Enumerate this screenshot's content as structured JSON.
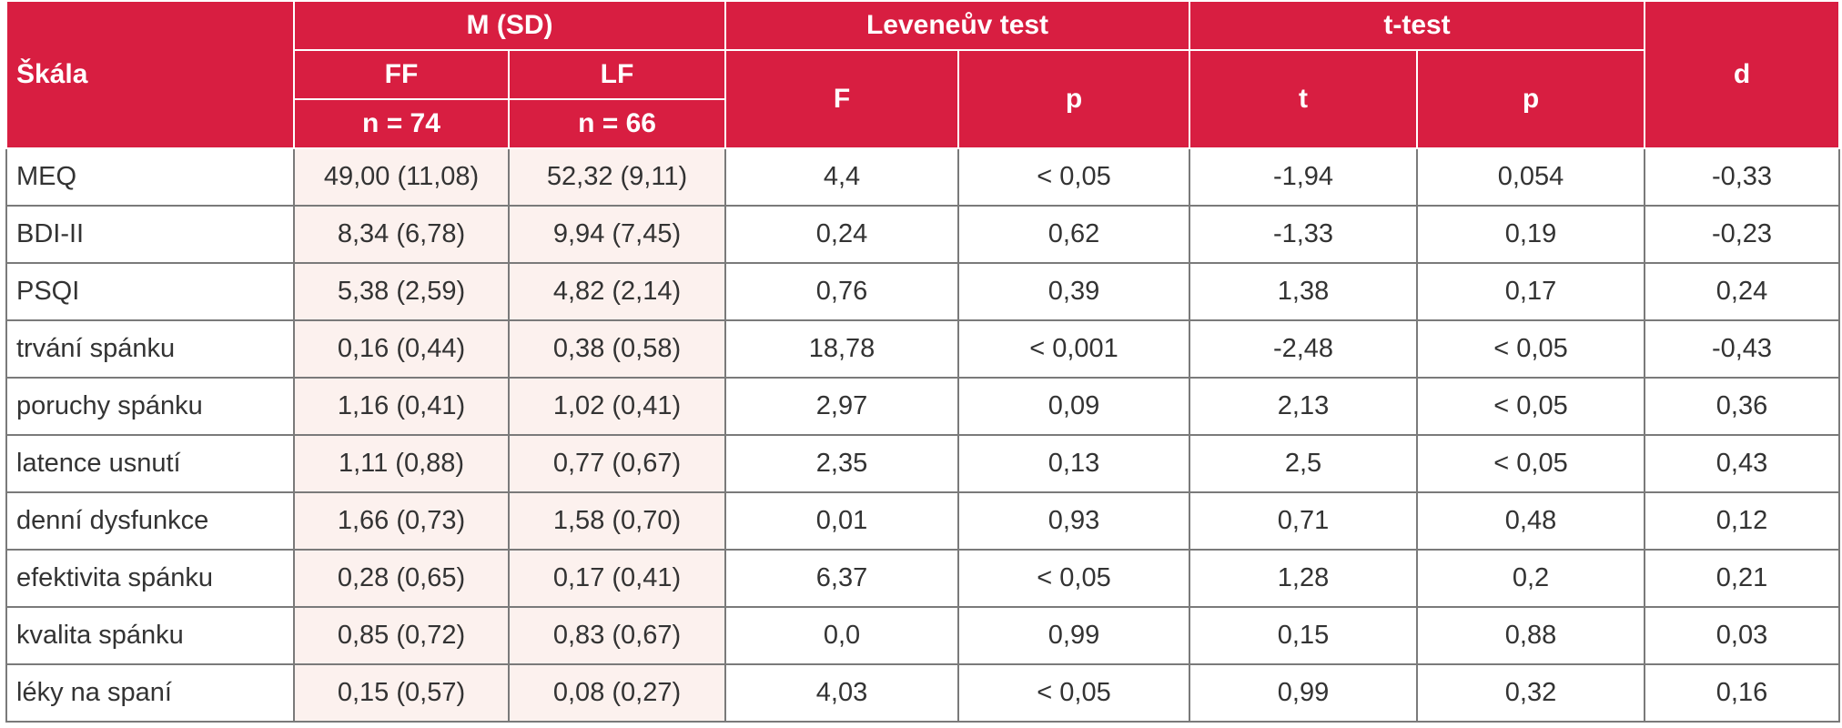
{
  "header": {
    "scale": "Škála",
    "msd": "M (SD)",
    "levene": "Leveneův test",
    "ttest": "t-test",
    "d": "d",
    "ff": "FF",
    "lf": "LF",
    "ff_n": "n = 74",
    "lf_n": "n = 66",
    "levene_f": "F",
    "levene_p": "p",
    "t": "t",
    "t_p": "p"
  },
  "rows": [
    {
      "scale": "MEQ",
      "ff": "49,00 (11,08)",
      "lf": "52,32 (9,11)",
      "F": "4,4",
      "pF": "< 0,05",
      "t": "-1,94",
      "pt": "0,054",
      "d": "-0,33"
    },
    {
      "scale": "BDI-II",
      "ff": "8,34 (6,78)",
      "lf": "9,94 (7,45)",
      "F": "0,24",
      "pF": "0,62",
      "t": "-1,33",
      "pt": "0,19",
      "d": "-0,23"
    },
    {
      "scale": "PSQI",
      "ff": "5,38 (2,59)",
      "lf": "4,82 (2,14)",
      "F": "0,76",
      "pF": "0,39",
      "t": "1,38",
      "pt": "0,17",
      "d": "0,24"
    },
    {
      "scale": "trvání spánku",
      "ff": "0,16 (0,44)",
      "lf": "0,38 (0,58)",
      "F": "18,78",
      "pF": "< 0,001",
      "t": "-2,48",
      "pt": "< 0,05",
      "d": "-0,43"
    },
    {
      "scale": "poruchy spánku",
      "ff": "1,16 (0,41)",
      "lf": "1,02 (0,41)",
      "F": "2,97",
      "pF": "0,09",
      "t": "2,13",
      "pt": "< 0,05",
      "d": "0,36"
    },
    {
      "scale": "latence usnutí",
      "ff": "1,11 (0,88)",
      "lf": "0,77 (0,67)",
      "F": "2,35",
      "pF": "0,13",
      "t": "2,5",
      "pt": "< 0,05",
      "d": "0,43"
    },
    {
      "scale": "denní dysfunkce",
      "ff": "1,66 (0,73)",
      "lf": "1,58 (0,70)",
      "F": "0,01",
      "pF": "0,93",
      "t": "0,71",
      "pt": "0,48",
      "d": "0,12"
    },
    {
      "scale": "efektivita spánku",
      "ff": "0,28 (0,65)",
      "lf": "0,17 (0,41)",
      "F": "6,37",
      "pF": "< 0,05",
      "t": "1,28",
      "pt": "0,2",
      "d": "0,21"
    },
    {
      "scale": "kvalita spánku",
      "ff": "0,85 (0,72)",
      "lf": "0,83 (0,67)",
      "F": "0,0",
      "pF": "0,99",
      "t": "0,15",
      "pt": "0,88",
      "d": "0,03"
    },
    {
      "scale": "léky na spaní",
      "ff": "0,15 (0,57)",
      "lf": "0,08 (0,27)",
      "F": "4,03",
      "pF": "< 0,05",
      "t": "0,99",
      "pt": "0,32",
      "d": "0,16"
    }
  ],
  "colors": {
    "header_bg": "#d81e41",
    "header_text": "#ffffff",
    "row_shade": "#fcf1ee",
    "border": "#7a7a7a"
  }
}
